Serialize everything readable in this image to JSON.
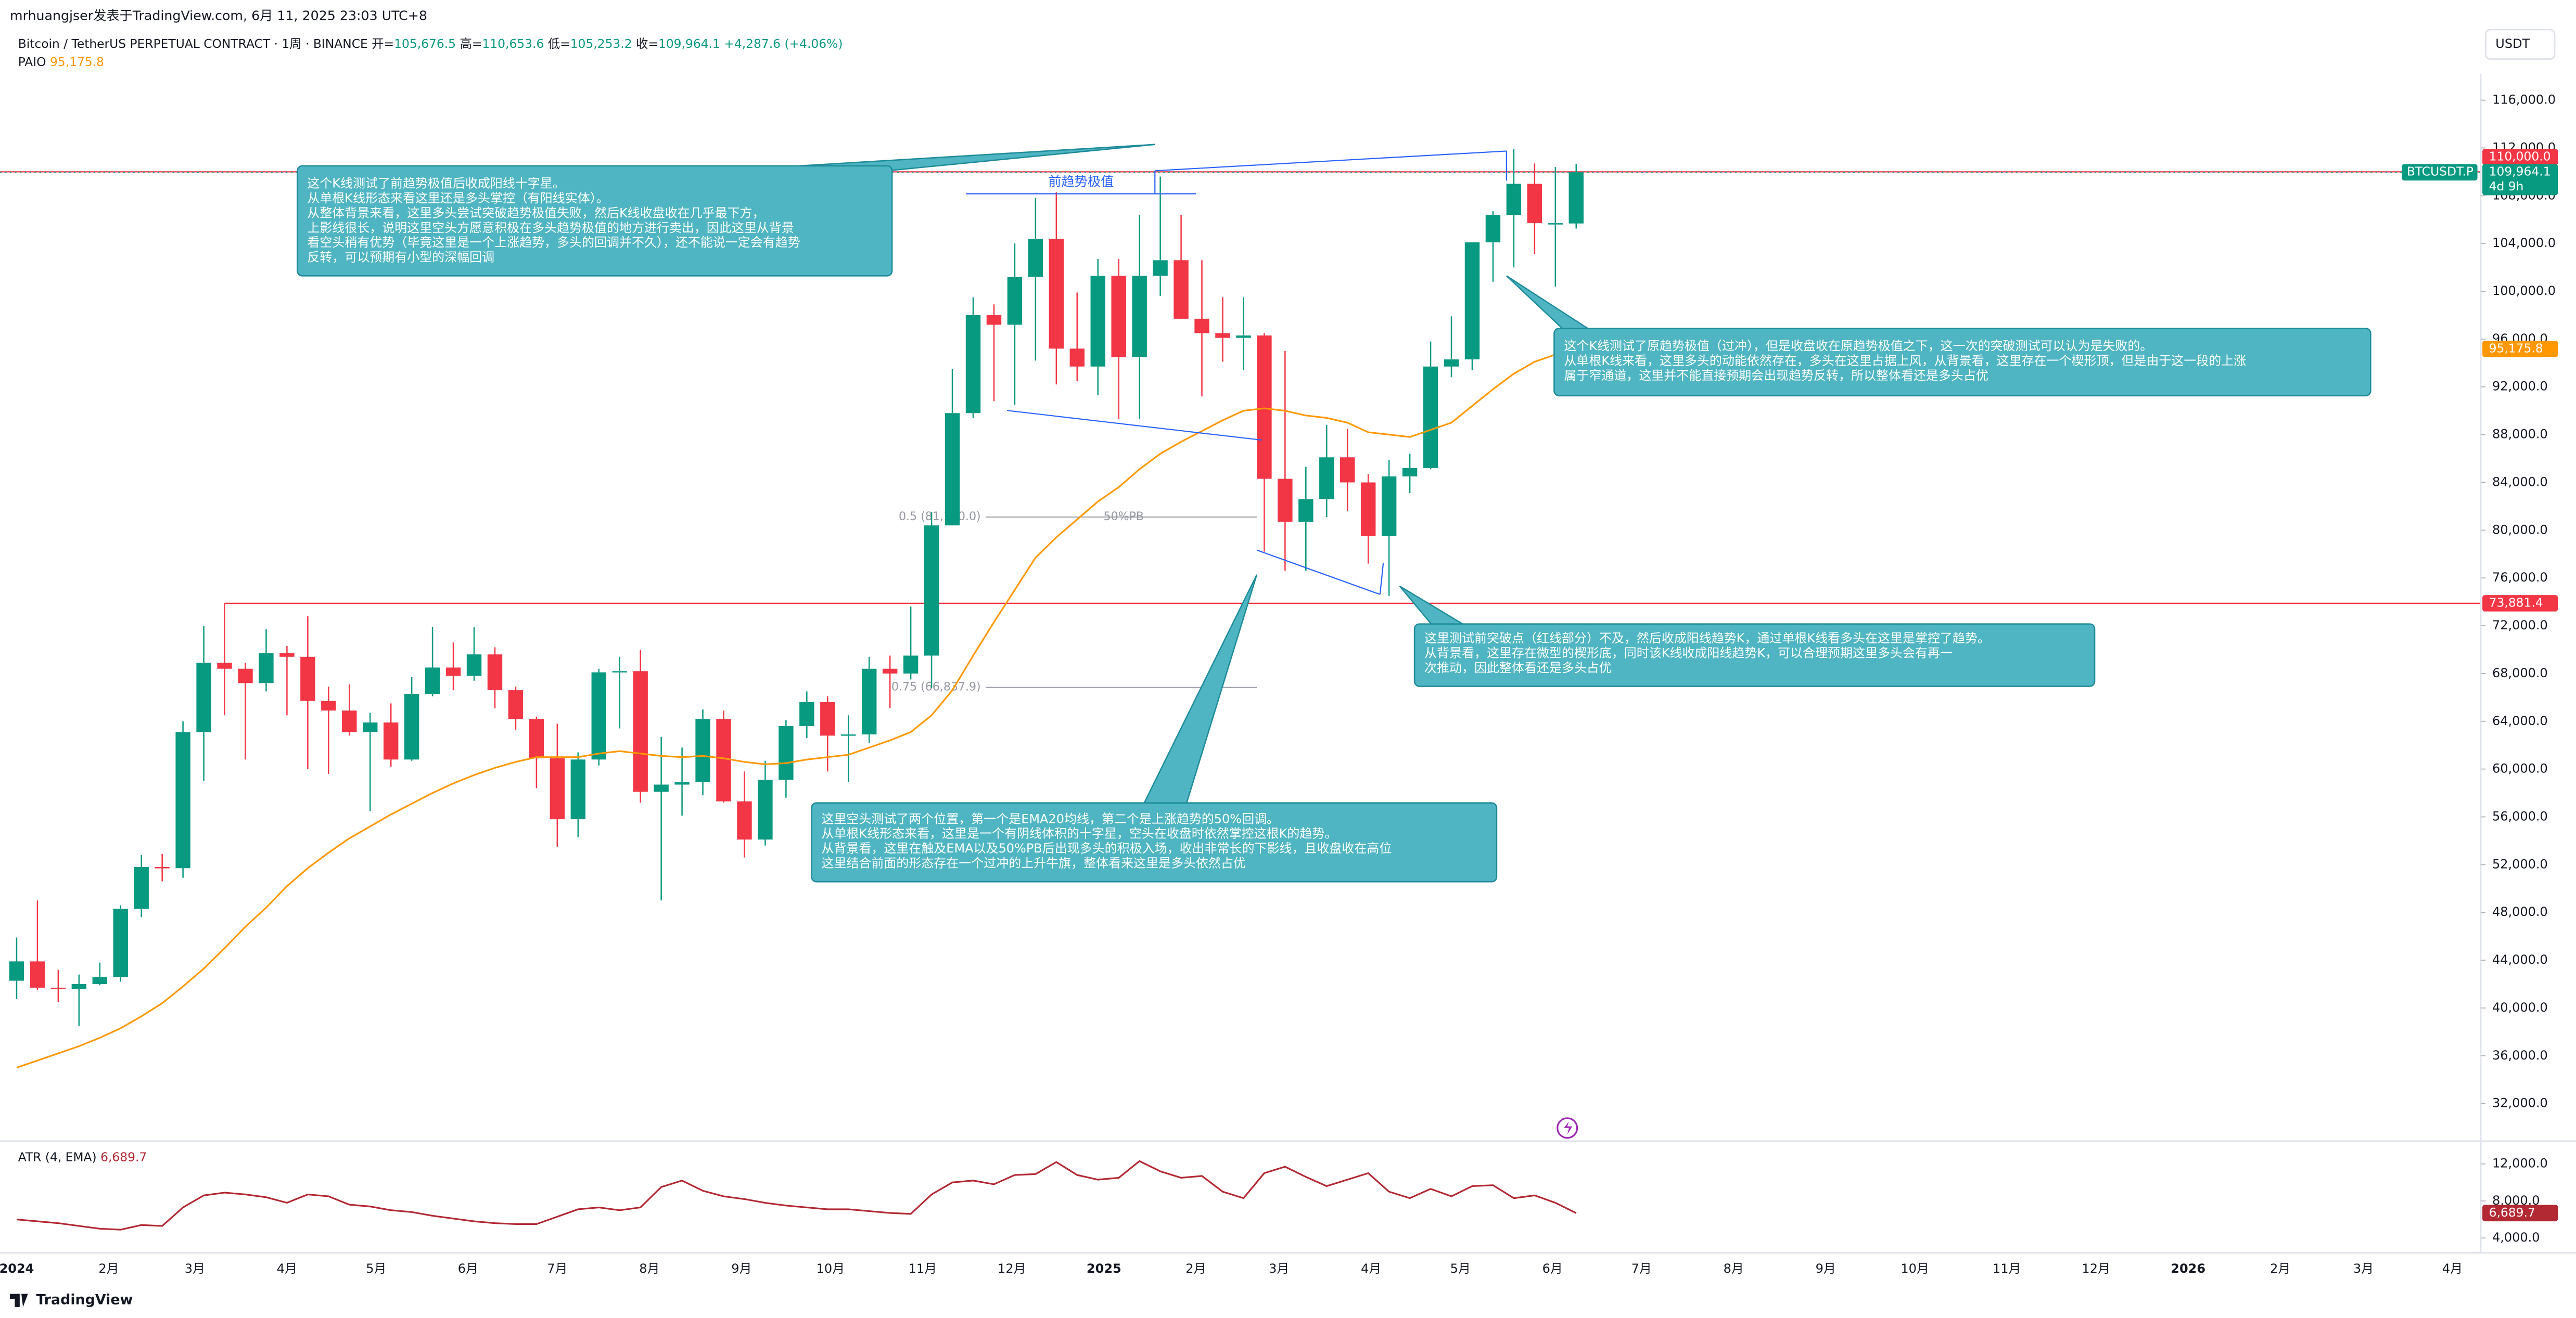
{
  "header": {
    "author_line": "mrhuangjser发表于TradingView.com, 6月 11, 2025 23:03 UTC+8",
    "symbol": "Bitcoin / TetherUS PERPETUAL CONTRACT · 1周 · BINANCE",
    "ohlc": [
      {
        "key": "开=",
        "value": "105,676.5"
      },
      {
        "key": "高=",
        "value": "110,653.6"
      },
      {
        "key": "低=",
        "value": "105,253.2"
      },
      {
        "key": "收=",
        "value": "109,964.1"
      }
    ],
    "change": "+4,287.6 (+4.06%)",
    "currency": "USDT",
    "footer": "TradingView"
  },
  "chart_data": [
    {
      "type": "candlestick",
      "up_color": "#089981",
      "down_color": "#f23645",
      "open": [
        42280,
        43900,
        41700,
        41600,
        42000,
        42600,
        48300,
        51800,
        51700,
        63100,
        68900,
        68400,
        67200,
        69700,
        69400,
        65700,
        64900,
        63100,
        63900,
        60800,
        66300,
        68500,
        67800,
        69600,
        66600,
        64200,
        60900,
        55800,
        60800,
        68100,
        68200,
        58100,
        58700,
        58900,
        64200,
        57300,
        54100,
        59100,
        63600,
        65600,
        62800,
        62900,
        68400,
        68000,
        69500,
        80400,
        89800,
        98000,
        97200,
        101200,
        104400,
        95200,
        93700,
        101300,
        94500,
        101300,
        102600,
        97700,
        96500,
        96100,
        96300,
        84300,
        80700,
        82600,
        86100,
        84000,
        79500,
        84500,
        85200,
        93700,
        94300,
        104100,
        106400,
        109000,
        105700,
        105676.5
      ],
      "high": [
        45900,
        49000,
        43200,
        42800,
        43800,
        48600,
        52800,
        52900,
        64000,
        72000,
        73881.4,
        68900,
        71700,
        70300,
        72800,
        66900,
        67100,
        64700,
        65500,
        67700,
        71900,
        70600,
        71900,
        70200,
        66900,
        64400,
        63800,
        61400,
        68400,
        69400,
        70000,
        62700,
        61800,
        65000,
        64900,
        59800,
        60700,
        64100,
        66500,
        66100,
        64500,
        69400,
        69500,
        73600,
        81500,
        93500,
        99500,
        98900,
        104000,
        107800,
        108300,
        99900,
        102700,
        102700,
        106400,
        109600,
        106400,
        102600,
        99500,
        99500,
        96500,
        95000,
        85300,
        88800,
        88500,
        84700,
        85900,
        86400,
        95800,
        97900,
        104100,
        106700,
        111900,
        110700,
        110400,
        110653.6
      ],
      "low": [
        40750,
        41500,
        40500,
        38500,
        41900,
        42200,
        47600,
        50600,
        50900,
        59000,
        64500,
        60800,
        66500,
        64500,
        60000,
        59600,
        62800,
        56500,
        60200,
        60700,
        66100,
        66600,
        67400,
        65100,
        63300,
        58400,
        53500,
        54300,
        60300,
        63400,
        57200,
        49000,
        56100,
        57800,
        57200,
        52600,
        53600,
        57600,
        62600,
        59800,
        58900,
        62200,
        65100,
        67500,
        66800,
        80400,
        89400,
        90800,
        90500,
        94200,
        92200,
        92500,
        91300,
        89300,
        89300,
        99600,
        97700,
        91200,
        94100,
        93400,
        78200,
        76600,
        76600,
        81100,
        81600,
        77200,
        74500,
        83100,
        85100,
        92800,
        93400,
        100800,
        102000,
        103100,
        100400,
        105253.2
      ],
      "close": [
        43900,
        41700,
        41600,
        42000,
        42600,
        48300,
        51800,
        51700,
        63100,
        68900,
        68400,
        67200,
        69700,
        69400,
        65700,
        64900,
        63100,
        63900,
        60800,
        66300,
        68500,
        67800,
        69600,
        66600,
        64200,
        60900,
        55800,
        60800,
        68100,
        68200,
        58100,
        58700,
        58900,
        64200,
        57300,
        54100,
        59100,
        63600,
        65600,
        62800,
        62900,
        68400,
        68000,
        69500,
        80400,
        89800,
        98000,
        97200,
        101200,
        104400,
        95200,
        93700,
        101300,
        94500,
        101300,
        102600,
        97700,
        96500,
        96100,
        96300,
        84300,
        80700,
        82600,
        86100,
        84000,
        79500,
        84500,
        85200,
        93700,
        94300,
        104100,
        106400,
        109000,
        105700,
        105700,
        109964.1
      ],
      "series": [
        {
          "name": "PAIO",
          "color": "#ff9800",
          "value_label": "95,175.8",
          "values": [
            35000,
            35600,
            36200,
            36800,
            37500,
            38300,
            39300,
            40400,
            41800,
            43300,
            45000,
            46800,
            48400,
            50200,
            51700,
            53000,
            54200,
            55200,
            56200,
            57100,
            58000,
            58800,
            59500,
            60100,
            60600,
            61000,
            61000,
            61000,
            61300,
            61500,
            61300,
            61100,
            61000,
            61100,
            60900,
            60600,
            60400,
            60500,
            60800,
            61000,
            61200,
            61800,
            62400,
            63100,
            64500,
            66600,
            69500,
            72300,
            75000,
            77700,
            79400,
            80900,
            82400,
            83600,
            85100,
            86400,
            87400,
            88300,
            89200,
            90000,
            90200,
            90000,
            89600,
            89400,
            89000,
            88200,
            88000,
            87800,
            88400,
            89000,
            90400,
            91800,
            93100,
            94100,
            94700,
            95175.8
          ]
        }
      ],
      "last_price": {
        "value": 109964.1,
        "label": "109,964.1",
        "symbol": "BTCUSDT.P",
        "countdown": "4d 9h",
        "color": "#089981"
      },
      "hlines": [
        {
          "value": 110000,
          "label": "110,000.0",
          "color": "#f23645"
        },
        {
          "value": 73881.4,
          "label": "73,881.4",
          "color": "#f23645"
        }
      ],
      "fib": [
        {
          "value": 81100,
          "label": "0.5 (81,100.0)"
        },
        {
          "value": 66837.9,
          "label": "0.75 (66,837.9)"
        }
      ],
      "fib_note": "50%PB",
      "drawing_label": "前趋势极值",
      "annotations": [
        {
          "lines": [
            "这个K线测试了前趋势极值后收成阳线十字星。",
            "从单根K线形态来看这里还是多头掌控（有阳线实体）。",
            "从整体背景来看，这里多头尝试突破趋势极值失败，然后K线收盘收在几乎最下方，",
            "上影线很长，说明这里空头方愿意积极在多头趋势极值的地方进行卖出，因此这里从背景",
            "看空头稍有优势（毕竟这里是一个上涨趋势，多头的回调并不久），还不能说一定会有趋势",
            "反转，可以预期有小型的深幅回调"
          ]
        },
        {
          "lines": [
            "这个K线测试了原趋势极值（过冲），但是收盘收在原趋势极值之下，这一次的突破测试可以认为是失败的。",
            "从单根K线来看，这里多头的动能依然存在，多头在这里占据上风，从背景看，这里存在一个楔形顶，但是由于这一段的上涨",
            "属于窄通道，这里并不能直接预期会出现趋势反转，所以整体看还是多头占优"
          ]
        },
        {
          "lines": [
            "这里测试前突破点（红线部分）不及，然后收成阳线趋势K，通过单根K线看多头在这里是掌控了趋势。",
            "从背景看，这里存在微型的楔形底，同时该K线收成阳线趋势K，可以合理预期这里多头会有再一",
            "次推动，因此整体看还是多头占优"
          ]
        },
        {
          "lines": [
            "这里空头测试了两个位置，第一个是EMA20均线，第二个是上涨趋势的50%回调。",
            "从单根K线形态来看，这里是一个有阴线体积的十字星，空头在收盘时依然掌控这根K的趋势。",
            "从背景看，这里在触及EMA以及50%PB后出现多头的积极入场，收出非常长的下影线，且收盘收在高位",
            "这里结合前面的形态存在一个过冲的上升牛旗，整体看来这里是多头依然占优"
          ]
        }
      ],
      "xlim": [
        -0.8,
        118.5
      ],
      "xticks": [
        {
          "value": 0,
          "label": "2024"
        },
        {
          "value": 4.43,
          "label": "2月"
        },
        {
          "value": 8.57,
          "label": "3月"
        },
        {
          "value": 13,
          "label": "4月"
        },
        {
          "value": 17.29,
          "label": "5月"
        },
        {
          "value": 21.71,
          "label": "6月"
        },
        {
          "value": 26,
          "label": "7月"
        },
        {
          "value": 30.43,
          "label": "8月"
        },
        {
          "value": 34.86,
          "label": "9月"
        },
        {
          "value": 39.14,
          "label": "10月"
        },
        {
          "value": 43.57,
          "label": "11月"
        },
        {
          "value": 47.86,
          "label": "12月"
        },
        {
          "value": 52.29,
          "label": "2025"
        },
        {
          "value": 56.71,
          "label": "2月"
        },
        {
          "value": 60.71,
          "label": "3月"
        },
        {
          "value": 65.14,
          "label": "4月"
        },
        {
          "value": 69.43,
          "label": "5月"
        },
        {
          "value": 73.86,
          "label": "6月"
        },
        {
          "value": 78.14,
          "label": "7月"
        },
        {
          "value": 82.57,
          "label": "8月"
        },
        {
          "value": 87,
          "label": "9月"
        },
        {
          "value": 91.29,
          "label": "10月"
        },
        {
          "value": 95.71,
          "label": "11月"
        },
        {
          "value": 100,
          "label": "12月"
        },
        {
          "value": 104.43,
          "label": "2026"
        },
        {
          "value": 108.86,
          "label": "2月"
        },
        {
          "value": 112.86,
          "label": "3月"
        },
        {
          "value": 117.14,
          "label": "4月"
        }
      ],
      "ylim": [
        28850,
        118200
      ],
      "yticks": [
        {
          "value": 32000,
          "label": "32,000.0"
        },
        {
          "value": 36000,
          "label": "36,000.0"
        },
        {
          "value": 40000,
          "label": "40,000.0"
        },
        {
          "value": 44000,
          "label": "44,000.0"
        },
        {
          "value": 48000,
          "label": "48,000.0"
        },
        {
          "value": 52000,
          "label": "52,000.0"
        },
        {
          "value": 56000,
          "label": "56,000.0"
        },
        {
          "value": 60000,
          "label": "60,000.0"
        },
        {
          "value": 64000,
          "label": "64,000.0"
        },
        {
          "value": 68000,
          "label": "68,000.0"
        },
        {
          "value": 72000,
          "label": "72,000.0"
        },
        {
          "value": 76000,
          "label": "76,000.0"
        },
        {
          "value": 80000,
          "label": "80,000.0"
        },
        {
          "value": 84000,
          "label": "84,000.0"
        },
        {
          "value": 88000,
          "label": "88,000.0"
        },
        {
          "value": 92000,
          "label": "92,000.0"
        },
        {
          "value": 96000,
          "label": "96,000.0"
        },
        {
          "value": 100000,
          "label": "100,000.0"
        },
        {
          "value": 104000,
          "label": "104,000.0"
        },
        {
          "value": 108000,
          "label": "108,000.0"
        },
        {
          "value": 112000,
          "label": "112,000.0"
        },
        {
          "value": 116000,
          "label": "116,000.0"
        }
      ]
    },
    {
      "type": "line",
      "series": [
        {
          "name": "ATR (4, EMA)",
          "color": "#b22833",
          "value_label": "6,689.7",
          "values": [
            6000,
            5800,
            5600,
            5300,
            5000,
            4900,
            5400,
            5300,
            7300,
            8600,
            8900,
            8700,
            8400,
            7800,
            8700,
            8500,
            7600,
            7400,
            7000,
            6800,
            6400,
            6100,
            5800,
            5600,
            5500,
            5500,
            6300,
            7100,
            7300,
            7000,
            7300,
            9500,
            10200,
            9100,
            8500,
            8200,
            7800,
            7500,
            7300,
            7100,
            7100,
            6900,
            6700,
            6600,
            8700,
            10000,
            10200,
            9800,
            10800,
            10900,
            12200,
            10800,
            10300,
            10500,
            12300,
            11200,
            10500,
            10700,
            9000,
            8300,
            11000,
            11700,
            10600,
            9600,
            10300,
            11000,
            9000,
            8300,
            9300,
            8500,
            9600,
            9700,
            8300,
            8600,
            7800,
            6689.7
          ]
        }
      ],
      "ylim": [
        2400,
        14100
      ],
      "yticks": [
        {
          "value": 4000,
          "label": "4,000.0"
        },
        {
          "value": 8000,
          "label": "8,000.0"
        },
        {
          "value": 12000,
          "label": "12,000.0"
        }
      ]
    }
  ]
}
